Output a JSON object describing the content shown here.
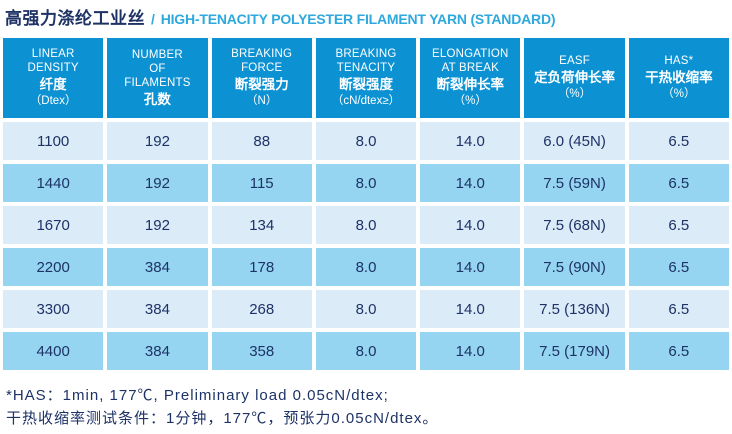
{
  "title": {
    "zh": "高强力涤纶工业丝",
    "separator": "/",
    "en": "HIGH-TENACITY POLYESTER FILAMENT YARN (STANDARD)"
  },
  "colors": {
    "header_bg": "#0c92d3",
    "row_light": "#dcebf8",
    "row_dark": "#95d5f1",
    "text": "#1d3266",
    "title_zh": "#1e3264",
    "title_en": "#2ea8dd"
  },
  "table": {
    "headers": [
      {
        "lines": [
          "LINEAR",
          "DENSITY",
          "纤度",
          "（Dtex）"
        ]
      },
      {
        "lines": [
          "NUMBER",
          "OF",
          "FILAMENTS",
          "孔数"
        ]
      },
      {
        "lines": [
          "BREAKING",
          "FORCE",
          "断裂强力",
          "（N）"
        ]
      },
      {
        "lines": [
          "BREAKING",
          "TENACITY",
          "断裂强度",
          "（cN/dtex≥）"
        ]
      },
      {
        "lines": [
          "ELONGATION",
          "AT BREAK",
          "断裂伸长率",
          "（%）"
        ]
      },
      {
        "lines": [
          "EASF",
          "定负荷伸长率",
          "（%）"
        ]
      },
      {
        "lines": [
          "HAS*",
          "干热收缩率",
          "（%）"
        ]
      }
    ],
    "rows": [
      [
        "1100",
        "192",
        "88",
        "8.0",
        "14.0",
        "6.0 (45N)",
        "6.5"
      ],
      [
        "1440",
        "192",
        "115",
        "8.0",
        "14.0",
        "7.5 (59N)",
        "6.5"
      ],
      [
        "1670",
        "192",
        "134",
        "8.0",
        "14.0",
        "7.5 (68N)",
        "6.5"
      ],
      [
        "2200",
        "384",
        "178",
        "8.0",
        "14.0",
        "7.5 (90N)",
        "6.5"
      ],
      [
        "3300",
        "384",
        "268",
        "8.0",
        "14.0",
        "7.5 (136N)",
        "6.5"
      ],
      [
        "4400",
        "384",
        "358",
        "8.0",
        "14.0",
        "7.5 (179N)",
        "6.5"
      ]
    ]
  },
  "notes": [
    "*HAS：1min, 177℃, Preliminary load 0.05cN/dtex;",
    "干热收缩率测试条件：1分钟，177℃，预张力0.05cN/dtex。"
  ]
}
